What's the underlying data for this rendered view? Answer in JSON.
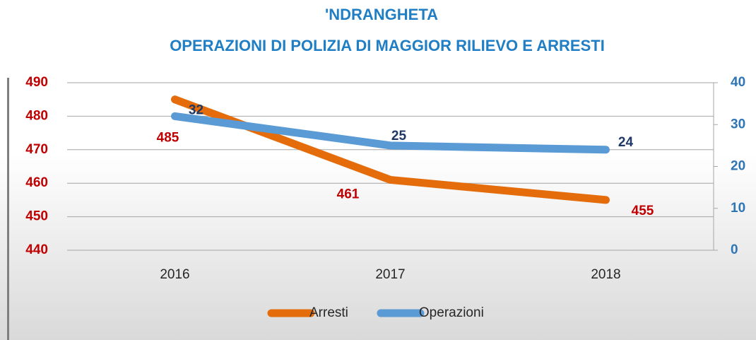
{
  "chart_data": {
    "type": "line",
    "title": "'NDRANGHETA",
    "subtitle": "OPERAZIONI DI POLIZIA DI MAGGIOR RILIEVO E ARRESTI",
    "categories": [
      "2016",
      "2017",
      "2018"
    ],
    "series": [
      {
        "name": "Arresti",
        "color": "#e46c0a",
        "values": [
          485,
          461,
          455
        ]
      },
      {
        "name": "Operazioni",
        "color": "#5b9bd5",
        "values": [
          32,
          25,
          24
        ],
        "axis": "y2"
      }
    ],
    "ylim": [
      440,
      490
    ],
    "yticks": [
      440,
      450,
      460,
      470,
      480,
      490
    ],
    "y2lim": [
      0,
      40
    ],
    "y2ticks": [
      0,
      10,
      20,
      30,
      40
    ],
    "grid": true,
    "legend": "bottom"
  }
}
